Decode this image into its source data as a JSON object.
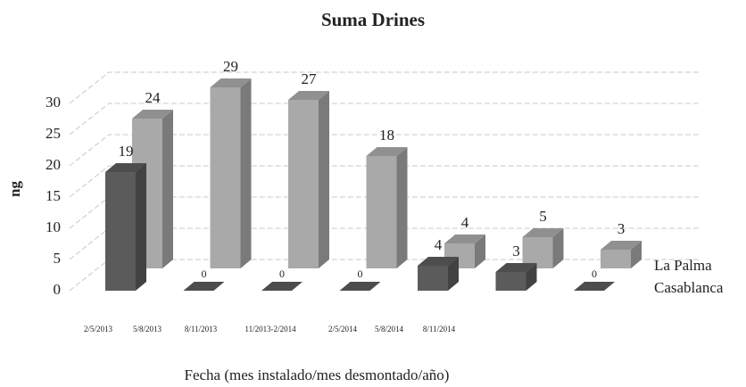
{
  "chart_data": {
    "type": "bar3d",
    "title": "Suma Drines",
    "x_label": "Fecha (mes instalado/mes desmontado/año)",
    "y_label": "ng",
    "categories": [
      "2/5/2013",
      "5/8/2013",
      "8/11/2013",
      "11/2013-2/2014",
      "2/5/2014",
      "5/8/2014",
      "8/11/2014"
    ],
    "series": [
      {
        "name": "La Palma",
        "color": "#a9a9a9",
        "values": [
          24,
          29,
          27,
          18,
          4,
          5,
          3
        ]
      },
      {
        "name": "Casablanca",
        "color": "#5b5b5b",
        "values": [
          19,
          0,
          0,
          0,
          4,
          3,
          0
        ]
      }
    ],
    "ylim": [
      0,
      30
    ],
    "yticks": [
      0,
      5,
      10,
      15,
      20,
      25,
      30
    ],
    "grid": true
  }
}
